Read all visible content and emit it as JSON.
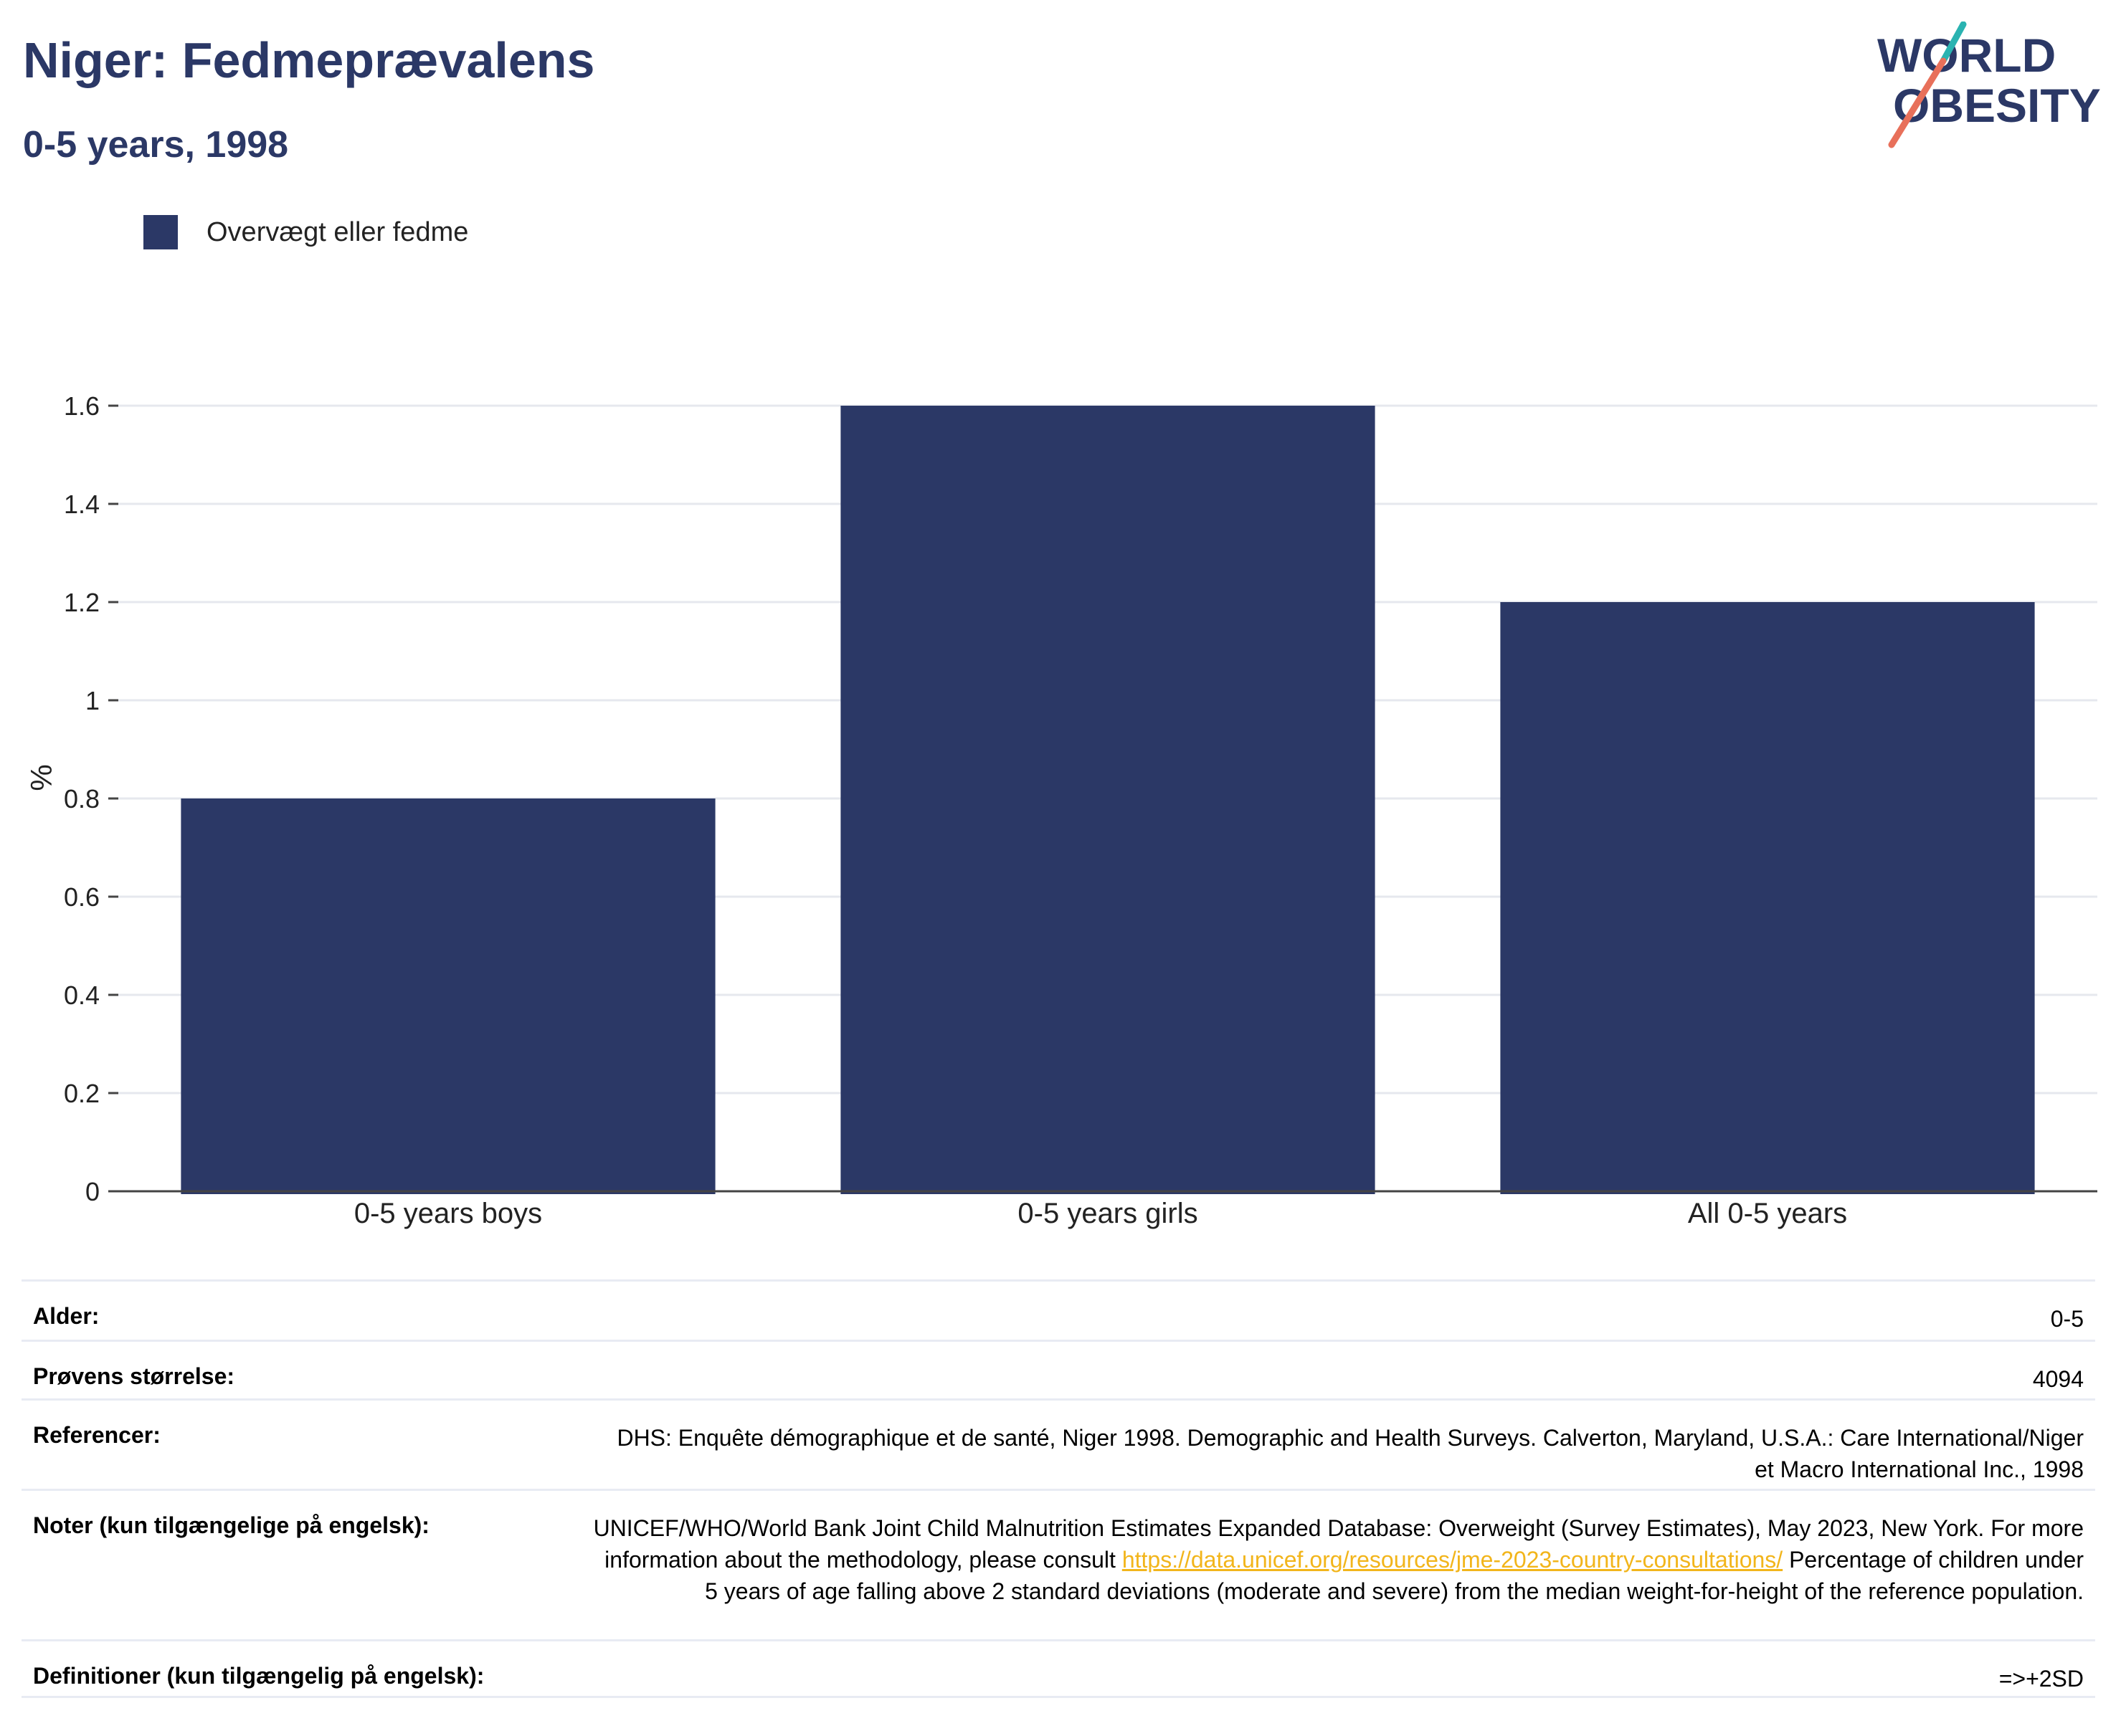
{
  "header": {
    "title": "Niger: Fedmeprævalens",
    "subtitle": "0-5 years, 1998"
  },
  "logo": {
    "line1": "WORLD",
    "line2": "OBESITY",
    "icon": "world-obesity-logo"
  },
  "colors": {
    "bar": "#2b3866",
    "title": "#2b3866",
    "link": "#f2b51b",
    "logo_teal": "#2ab3b1",
    "logo_red": "#e8705a"
  },
  "chart_data": {
    "type": "bar",
    "categories": [
      "0-5 years boys",
      "0-5 years girls",
      "All 0-5 years"
    ],
    "series": [
      {
        "name": "Overvægt eller fedme",
        "values": [
          0.8,
          1.6,
          1.2
        ]
      }
    ],
    "ylabel": "%",
    "ylim": [
      0,
      1.6
    ],
    "yticks": [
      0,
      0.2,
      0.4,
      0.6,
      0.8,
      1,
      1.2,
      1.4,
      1.6
    ],
    "grid": true,
    "legend": "top-left"
  },
  "info": {
    "rows": [
      {
        "label": "Alder:",
        "value": "0-5"
      },
      {
        "label": "Prøvens størrelse:",
        "value": "4094"
      },
      {
        "label": "Referencer:",
        "value": "DHS: Enquête démographique et de santé, Niger 1998. Demographic and Health Surveys. Calverton, Maryland, U.S.A.: Care International/Niger et Macro International Inc., 1998"
      },
      {
        "label": "Noter (kun tilgængelige på engelsk):",
        "value_pre": "UNICEF/WHO/World Bank Joint Child Malnutrition Estimates Expanded Database: Overweight (Survey Estimates), May 2023, New York. For more information about the methodology, please consult ",
        "link": "https://data.unicef.org/resources/jme-2023-country-consultations/",
        "value_post": " Percentage of children under 5 years of age falling above 2 standard deviations (moderate and severe) from the median weight-for-height of the reference population."
      },
      {
        "label": "Definitioner (kun tilgængelig på engelsk):",
        "value": "=>+2SD"
      }
    ]
  }
}
